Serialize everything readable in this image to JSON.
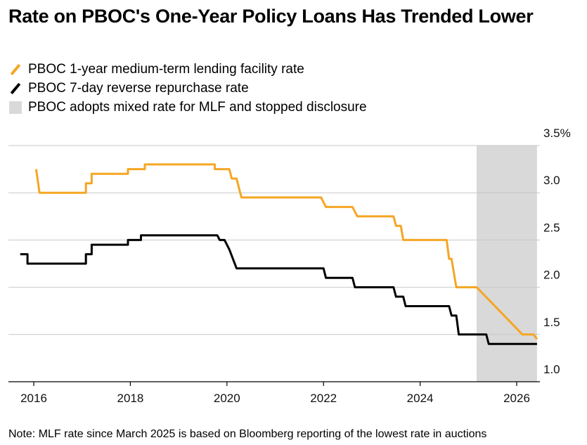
{
  "title": "Rate on PBOC's One-Year Policy Loans Has Trended Lower",
  "note": "Note: MLF rate since March 2025 is based on Bloomberg reporting of the lowest rate in auctions",
  "legend": [
    {
      "label": "PBOC 1-year medium-term lending facility rate",
      "kind": "line",
      "color": "#f5a623"
    },
    {
      "label": "PBOC 7-day reverse repurchase rate",
      "kind": "line",
      "color": "#000000"
    },
    {
      "label": "PBOC adopts mixed rate for MLF and stopped disclosure",
      "kind": "box",
      "color": "#d9d9d9"
    }
  ],
  "chart_data": {
    "type": "line",
    "title": "Rate on PBOC's One-Year Policy Loans Has Trended Lower",
    "xlim": [
      2015.6,
      2026.5
    ],
    "ylim": [
      1.0,
      3.5
    ],
    "x_ticks": [
      2016,
      2018,
      2020,
      2022,
      2024,
      2026
    ],
    "y_ticks": [
      1.0,
      1.5,
      2.0,
      2.5,
      3.0,
      3.5
    ],
    "y_tick_labels": [
      "1.0",
      "1.5",
      "2.0",
      "2.5",
      "3.0",
      "3.5%"
    ],
    "grid": true,
    "shaded_region": {
      "x": [
        2025.17,
        2026.42
      ],
      "color": "#d9d9d9"
    },
    "series": [
      {
        "name": "PBOC 1-year medium-term lending facility rate",
        "color": "#f5a623",
        "points": [
          [
            2016.05,
            3.25
          ],
          [
            2016.12,
            3.0
          ],
          [
            2017.08,
            3.0
          ],
          [
            2017.08,
            3.1
          ],
          [
            2017.2,
            3.1
          ],
          [
            2017.2,
            3.2
          ],
          [
            2017.95,
            3.2
          ],
          [
            2017.95,
            3.25
          ],
          [
            2018.3,
            3.25
          ],
          [
            2018.3,
            3.3
          ],
          [
            2019.75,
            3.3
          ],
          [
            2019.75,
            3.25
          ],
          [
            2020.05,
            3.25
          ],
          [
            2020.1,
            3.15
          ],
          [
            2020.2,
            3.15
          ],
          [
            2020.3,
            2.95
          ],
          [
            2021.95,
            2.95
          ],
          [
            2022.05,
            2.85
          ],
          [
            2022.6,
            2.85
          ],
          [
            2022.7,
            2.75
          ],
          [
            2023.45,
            2.75
          ],
          [
            2023.5,
            2.65
          ],
          [
            2023.6,
            2.65
          ],
          [
            2023.65,
            2.5
          ],
          [
            2024.55,
            2.5
          ],
          [
            2024.6,
            2.3
          ],
          [
            2024.65,
            2.3
          ],
          [
            2024.75,
            2.0
          ],
          [
            2025.17,
            2.0
          ],
          [
            2026.12,
            1.5
          ],
          [
            2026.35,
            1.5
          ],
          [
            2026.42,
            1.45
          ]
        ]
      },
      {
        "name": "PBOC 7-day reverse repurchase rate",
        "color": "#000000",
        "points": [
          [
            2015.72,
            2.35
          ],
          [
            2015.87,
            2.35
          ],
          [
            2015.87,
            2.25
          ],
          [
            2017.08,
            2.25
          ],
          [
            2017.08,
            2.35
          ],
          [
            2017.2,
            2.35
          ],
          [
            2017.2,
            2.45
          ],
          [
            2017.95,
            2.45
          ],
          [
            2017.95,
            2.5
          ],
          [
            2018.22,
            2.5
          ],
          [
            2018.22,
            2.55
          ],
          [
            2019.8,
            2.55
          ],
          [
            2019.85,
            2.5
          ],
          [
            2019.95,
            2.5
          ],
          [
            2020.05,
            2.4
          ],
          [
            2020.2,
            2.2
          ],
          [
            2022.0,
            2.2
          ],
          [
            2022.05,
            2.1
          ],
          [
            2022.6,
            2.1
          ],
          [
            2022.65,
            2.0
          ],
          [
            2023.45,
            2.0
          ],
          [
            2023.5,
            1.9
          ],
          [
            2023.65,
            1.9
          ],
          [
            2023.7,
            1.8
          ],
          [
            2024.6,
            1.8
          ],
          [
            2024.65,
            1.7
          ],
          [
            2024.75,
            1.7
          ],
          [
            2024.8,
            1.5
          ],
          [
            2025.37,
            1.5
          ],
          [
            2025.42,
            1.4
          ],
          [
            2026.42,
            1.4
          ]
        ]
      }
    ]
  }
}
